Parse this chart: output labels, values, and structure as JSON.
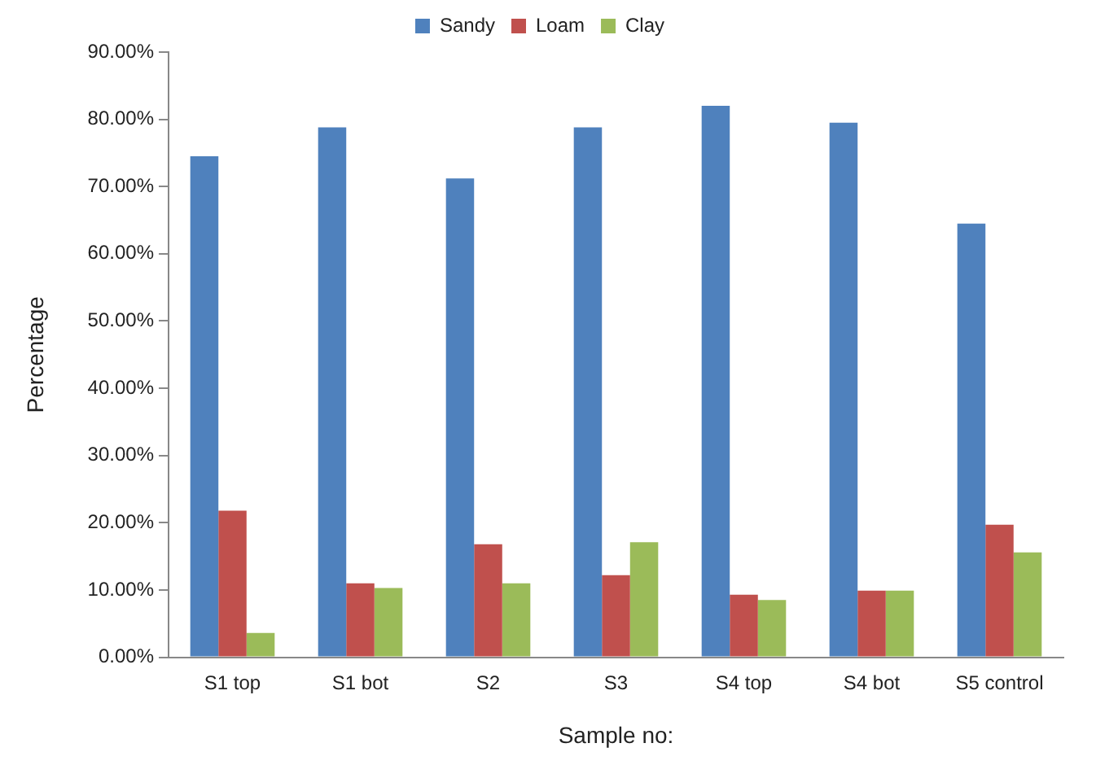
{
  "chart_data": {
    "type": "bar",
    "xlabel": "Sample no:",
    "ylabel": "Percentage",
    "categories": [
      "S1 top",
      "S1 bot",
      "S2",
      "S3",
      "S4 top",
      "S4 bot",
      "S5 control"
    ],
    "series": [
      {
        "name": "Sandy",
        "color": "#4f81bd",
        "values": [
          74.5,
          78.8,
          71.2,
          78.8,
          82.0,
          79.5,
          64.5
        ]
      },
      {
        "name": "Loam",
        "color": "#c0504d",
        "values": [
          21.8,
          11.0,
          16.8,
          12.2,
          9.3,
          9.9,
          19.7
        ]
      },
      {
        "name": "Clay",
        "color": "#9bbb59",
        "values": [
          3.6,
          10.3,
          11.0,
          17.1,
          8.5,
          9.9,
          15.6
        ]
      }
    ],
    "ylim": [
      0,
      90
    ],
    "yticks": [
      {
        "value": 0,
        "label": "0.00%"
      },
      {
        "value": 10,
        "label": "10.00%"
      },
      {
        "value": 20,
        "label": "20.00%"
      },
      {
        "value": 30,
        "label": "30.00%"
      },
      {
        "value": 40,
        "label": "40.00%"
      },
      {
        "value": 50,
        "label": "50.00%"
      },
      {
        "value": 60,
        "label": "60.00%"
      },
      {
        "value": 70,
        "label": "70.00%"
      },
      {
        "value": 80,
        "label": "80.00%"
      },
      {
        "value": 90,
        "label": "90.00%"
      }
    ],
    "grid": false,
    "legend": "top"
  }
}
